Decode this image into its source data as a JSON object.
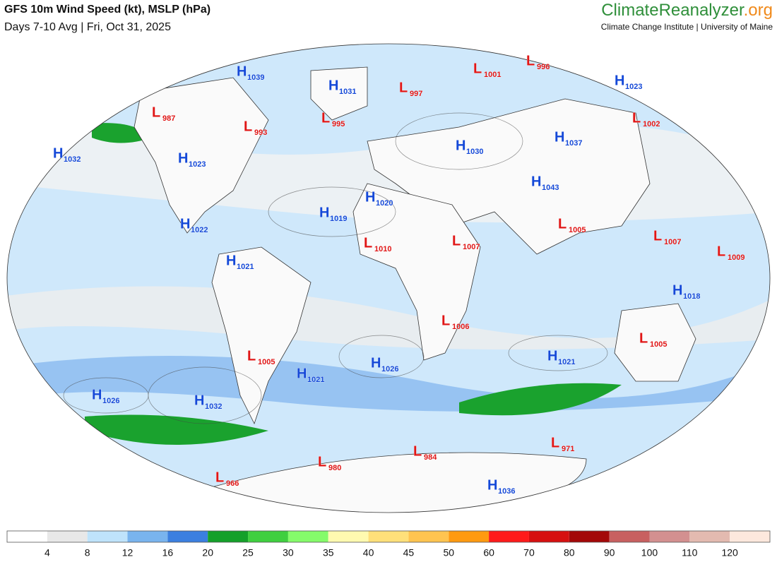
{
  "header": {
    "title": "GFS 10m Wind Speed (kt), MSLP (hPa)",
    "subtitle": "Days 7-10 Avg | Fri, Oct 31, 2025",
    "brand": {
      "name": "ClimateReanalyzer",
      "suffix": ".org"
    },
    "institute": "Climate Change Institute | University of Maine"
  },
  "map": {
    "high_color": "#1549d8",
    "low_color": "#e01616",
    "centers": [
      {
        "letter": "H",
        "value": 1039
      },
      {
        "letter": "L",
        "value": 1001
      },
      {
        "letter": "L",
        "value": 996
      },
      {
        "letter": "H",
        "value": 1023
      },
      {
        "letter": "H",
        "value": 1031
      },
      {
        "letter": "L",
        "value": 997
      },
      {
        "letter": "L",
        "value": 987
      },
      {
        "letter": "L",
        "value": 993
      },
      {
        "letter": "L",
        "value": 995
      },
      {
        "letter": "L",
        "value": 1002
      },
      {
        "letter": "H",
        "value": 1032
      },
      {
        "letter": "H",
        "value": 1023
      },
      {
        "letter": "H",
        "value": 1030
      },
      {
        "letter": "H",
        "value": 1037
      },
      {
        "letter": "H",
        "value": 1043
      },
      {
        "letter": "H",
        "value": 1020
      },
      {
        "letter": "H",
        "value": 1019
      },
      {
        "letter": "H",
        "value": 1022
      },
      {
        "letter": "L",
        "value": 1005
      },
      {
        "letter": "L",
        "value": 1007
      },
      {
        "letter": "L",
        "value": 1009
      },
      {
        "letter": "L",
        "value": 1010
      },
      {
        "letter": "L",
        "value": 1007
      },
      {
        "letter": "H",
        "value": 1021
      },
      {
        "letter": "H",
        "value": 1018
      },
      {
        "letter": "L",
        "value": 1006
      },
      {
        "letter": "L",
        "value": 1005
      },
      {
        "letter": "L",
        "value": 1005
      },
      {
        "letter": "H",
        "value": 1021
      },
      {
        "letter": "H",
        "value": 1026
      },
      {
        "letter": "H",
        "value": 1021
      },
      {
        "letter": "H",
        "value": 1026
      },
      {
        "letter": "H",
        "value": 1032
      },
      {
        "letter": "L",
        "value": 971
      },
      {
        "letter": "L",
        "value": 984
      },
      {
        "letter": "L",
        "value": 980
      },
      {
        "letter": "L",
        "value": 966
      },
      {
        "letter": "H",
        "value": 1036
      }
    ]
  },
  "colorbar": {
    "colors": [
      "#ffffff",
      "#e8e8e8",
      "#bfe3fb",
      "#79b4ee",
      "#3b7fe0",
      "#14a02a",
      "#3fcf3f",
      "#85fb6a",
      "#fffab0",
      "#ffe07a",
      "#ffc450",
      "#ff9a10",
      "#ff1a1a",
      "#d60f0f",
      "#a30808",
      "#c86060",
      "#d39090",
      "#e3bab0",
      "#fde8dd"
    ],
    "ticks": [
      4,
      8,
      12,
      16,
      20,
      25,
      30,
      35,
      40,
      45,
      50,
      60,
      70,
      80,
      90,
      100,
      110,
      120
    ]
  }
}
